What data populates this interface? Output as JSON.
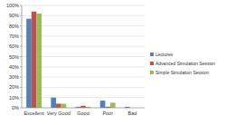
{
  "chart_data": {
    "type": "bar",
    "categories": [
      "Excellent",
      "Very Good",
      "Good",
      "Poor",
      "Bad"
    ],
    "series": [
      {
        "name": "Lectures",
        "color": "#4f81bd",
        "values": [
          87,
          10,
          1,
          7,
          1
        ]
      },
      {
        "name": "Advanced Simulation Session",
        "color": "#c0504d",
        "values": [
          94,
          4,
          2,
          1,
          0
        ]
      },
      {
        "name": "Simple Simulation Session",
        "color": "#9bbb59",
        "values": [
          92,
          4,
          1,
          5,
          0
        ]
      }
    ],
    "ylim": [
      0,
      100
    ],
    "yticks": [
      {
        "value": 0,
        "label": "0%"
      },
      {
        "value": 10,
        "label": "10%"
      },
      {
        "value": 20,
        "label": "20%"
      },
      {
        "value": 30,
        "label": "30%"
      },
      {
        "value": 40,
        "label": "40%"
      },
      {
        "value": 50,
        "label": "50%"
      },
      {
        "value": 60,
        "label": "60%"
      },
      {
        "value": 70,
        "label": "70%"
      },
      {
        "value": 80,
        "label": "80%"
      },
      {
        "value": 90,
        "label": "90%"
      },
      {
        "value": 100,
        "label": "100%"
      }
    ],
    "grid": true,
    "legend": "right"
  }
}
